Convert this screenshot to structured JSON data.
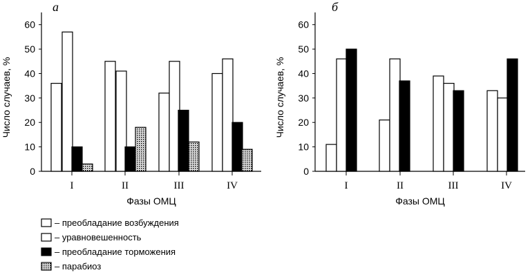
{
  "chart_data": [
    {
      "type": "bar",
      "panel_label": "а",
      "categories": [
        "I",
        "II",
        "III",
        "IV"
      ],
      "xlabel": "Фазы ОМЦ",
      "ylabel": "Число случаев, %",
      "ylim": [
        0,
        65
      ],
      "yticks": [
        0,
        10,
        20,
        30,
        40,
        50,
        60
      ],
      "series": [
        {
          "name": "– преобладание возбуждения",
          "pattern": "white",
          "values": [
            36,
            45,
            32,
            40
          ]
        },
        {
          "name": "– уравновешенность",
          "pattern": "white",
          "values": [
            57,
            41,
            45,
            46
          ]
        },
        {
          "name": "– преобладание торможения",
          "pattern": "black",
          "values": [
            10,
            10,
            25,
            20
          ]
        },
        {
          "name": "– парабиоз",
          "pattern": "dotted",
          "values": [
            3,
            18,
            12,
            9
          ]
        }
      ]
    },
    {
      "type": "bar",
      "panel_label": "б",
      "categories": [
        "I",
        "II",
        "III",
        "IV"
      ],
      "xlabel": "Фазы ОМЦ",
      "ylabel": "Число случаев, %",
      "ylim": [
        0,
        65
      ],
      "yticks": [
        0,
        10,
        20,
        30,
        40,
        50,
        60
      ],
      "series": [
        {
          "name": "– преобладание возбуждения",
          "pattern": "white",
          "values": [
            11,
            21,
            39,
            33
          ]
        },
        {
          "name": "– уравновешенность",
          "pattern": "white",
          "values": [
            46,
            46,
            36,
            30
          ]
        },
        {
          "name": "– преобладание торможения",
          "pattern": "black",
          "values": [
            50,
            37,
            33,
            46
          ]
        }
      ]
    }
  ],
  "legend": [
    {
      "label": "– преобладание возбуждения",
      "pattern": "white"
    },
    {
      "label": "– уравновешенность",
      "pattern": "white"
    },
    {
      "label": "– преобладание торможения",
      "pattern": "black"
    },
    {
      "label": "– парабиоз",
      "pattern": "dotted"
    }
  ]
}
